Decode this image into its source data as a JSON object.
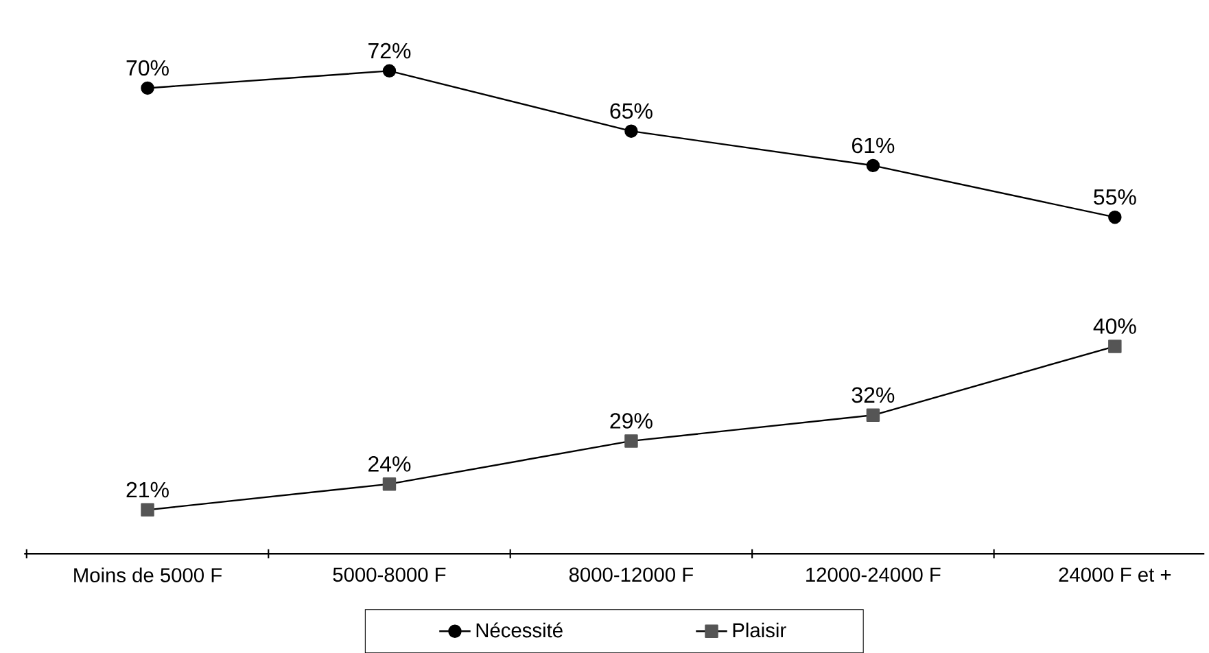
{
  "chart_data": {
    "type": "line",
    "categories": [
      "Moins de 5000 F",
      "5000-8000 F",
      "8000-12000 F",
      "12000-24000 F",
      "24000 F et +"
    ],
    "series": [
      {
        "name": "Nécessité",
        "color": "#000000",
        "marker": "circle",
        "values": [
          70,
          72,
          65,
          61,
          55
        ],
        "value_labels": [
          "70%",
          "72%",
          "65%",
          "61%",
          "55%"
        ]
      },
      {
        "name": "Plaisir",
        "color": "#555555",
        "marker": "square",
        "values": [
          21,
          24,
          29,
          32,
          40
        ],
        "value_labels": [
          "21%",
          "24%",
          "29%",
          "32%",
          "40%"
        ]
      }
    ],
    "tick_labels": "x",
    "legend": "bottom",
    "grid": false,
    "line_style": "solid"
  }
}
